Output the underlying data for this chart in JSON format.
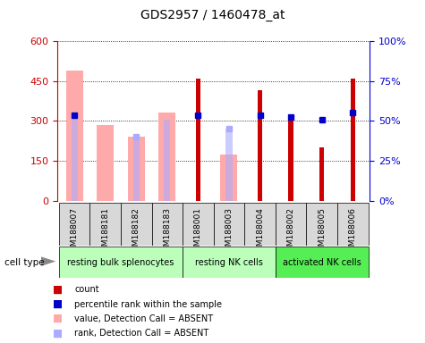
{
  "title": "GDS2957 / 1460478_at",
  "samples": [
    "GSM188007",
    "GSM188181",
    "GSM188182",
    "GSM188183",
    "GSM188001",
    "GSM188003",
    "GSM188004",
    "GSM188002",
    "GSM188005",
    "GSM188006"
  ],
  "groups": [
    {
      "label": "resting bulk splenocytes",
      "start": 0,
      "end": 3,
      "color": "#bbffbb"
    },
    {
      "label": "resting NK cells",
      "start": 4,
      "end": 6,
      "color": "#bbffbb"
    },
    {
      "label": "activated NK cells",
      "start": 7,
      "end": 9,
      "color": "#55ee55"
    }
  ],
  "count_values": [
    null,
    null,
    null,
    null,
    460,
    null,
    415,
    305,
    200,
    460
  ],
  "absent_value_bars": [
    490,
    285,
    240,
    330,
    null,
    175,
    null,
    null,
    null,
    null
  ],
  "absent_rank_bars": [
    320,
    null,
    240,
    305,
    null,
    270,
    null,
    null,
    null,
    null
  ],
  "percentile_rank_squares": [
    320,
    null,
    null,
    null,
    320,
    null,
    320,
    315,
    305,
    330
  ],
  "absent_rank_squares": [
    null,
    null,
    240,
    null,
    null,
    270,
    null,
    null,
    null,
    null
  ],
  "ylim_left": [
    0,
    600
  ],
  "ylim_right": [
    0,
    100
  ],
  "yticks_left": [
    0,
    150,
    300,
    450,
    600
  ],
  "ytick_labels_left": [
    "0",
    "150",
    "300",
    "450",
    "600"
  ],
  "yticks_right": [
    0,
    25,
    50,
    75,
    100
  ],
  "ytick_labels_right": [
    "0%",
    "25%",
    "50%",
    "75%",
    "100%"
  ],
  "absent_bar_color": "#ffaaaa",
  "absent_rank_bar_color": "#aaaaff",
  "count_color": "#cc0000",
  "percentile_square_color": "#0000cc",
  "absent_rank_square_color": "#aaaaff",
  "left_axis_color": "#cc0000",
  "right_axis_color": "#0000cc",
  "legend_items": [
    {
      "label": "count",
      "color": "#cc0000"
    },
    {
      "label": "percentile rank within the sample",
      "color": "#0000cc"
    },
    {
      "label": "value, Detection Call = ABSENT",
      "color": "#ffaaaa"
    },
    {
      "label": "rank, Detection Call = ABSENT",
      "color": "#aaaaff"
    }
  ]
}
